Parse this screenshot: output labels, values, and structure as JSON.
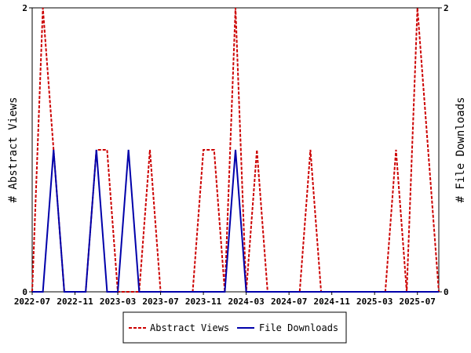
{
  "chart_data": {
    "type": "line",
    "x_labels": [
      "2022-07",
      "2022-11",
      "2023-03",
      "2023-07",
      "2023-11",
      "2024-03",
      "2024-07",
      "2024-11",
      "2025-03",
      "2025-07"
    ],
    "x": [
      "2022-07",
      "2022-08",
      "2022-09",
      "2022-10",
      "2022-11",
      "2022-12",
      "2023-01",
      "2023-02",
      "2023-03",
      "2023-04",
      "2023-05",
      "2023-06",
      "2023-07",
      "2023-08",
      "2023-09",
      "2023-10",
      "2023-11",
      "2023-12",
      "2024-01",
      "2024-02",
      "2024-03",
      "2024-04",
      "2024-05",
      "2024-06",
      "2024-07",
      "2024-08",
      "2024-09",
      "2024-10",
      "2024-11",
      "2024-12",
      "2025-01",
      "2025-02",
      "2025-03",
      "2025-04",
      "2025-05",
      "2025-06",
      "2025-07",
      "2025-08",
      "2025-09"
    ],
    "series": [
      {
        "name": "Abstract Views",
        "color": "#cc0000",
        "style": "dashed",
        "values": [
          0,
          2,
          1,
          0,
          0,
          0,
          1,
          1,
          0,
          0,
          0,
          1,
          0,
          0,
          0,
          0,
          1,
          1,
          0,
          2,
          0,
          1,
          0,
          0,
          0,
          0,
          1,
          0,
          0,
          0,
          0,
          0,
          0,
          0,
          1,
          0,
          2,
          1,
          0
        ]
      },
      {
        "name": "File Downloads",
        "color": "#0000aa",
        "style": "solid",
        "values": [
          0,
          0,
          1,
          0,
          0,
          0,
          1,
          0,
          0,
          1,
          0,
          0,
          0,
          0,
          0,
          0,
          0,
          0,
          0,
          1,
          0,
          0,
          0,
          0,
          0,
          0,
          0,
          0,
          0,
          0,
          0,
          0,
          0,
          0,
          0,
          0,
          0,
          0,
          0
        ]
      }
    ],
    "ylabel_left": "# Abstract Views",
    "ylabel_right": "# File Downloads",
    "ylim": [
      0,
      2
    ],
    "y_ticks": [
      "0",
      "2"
    ],
    "grid": false,
    "legend": "bottom-center"
  }
}
